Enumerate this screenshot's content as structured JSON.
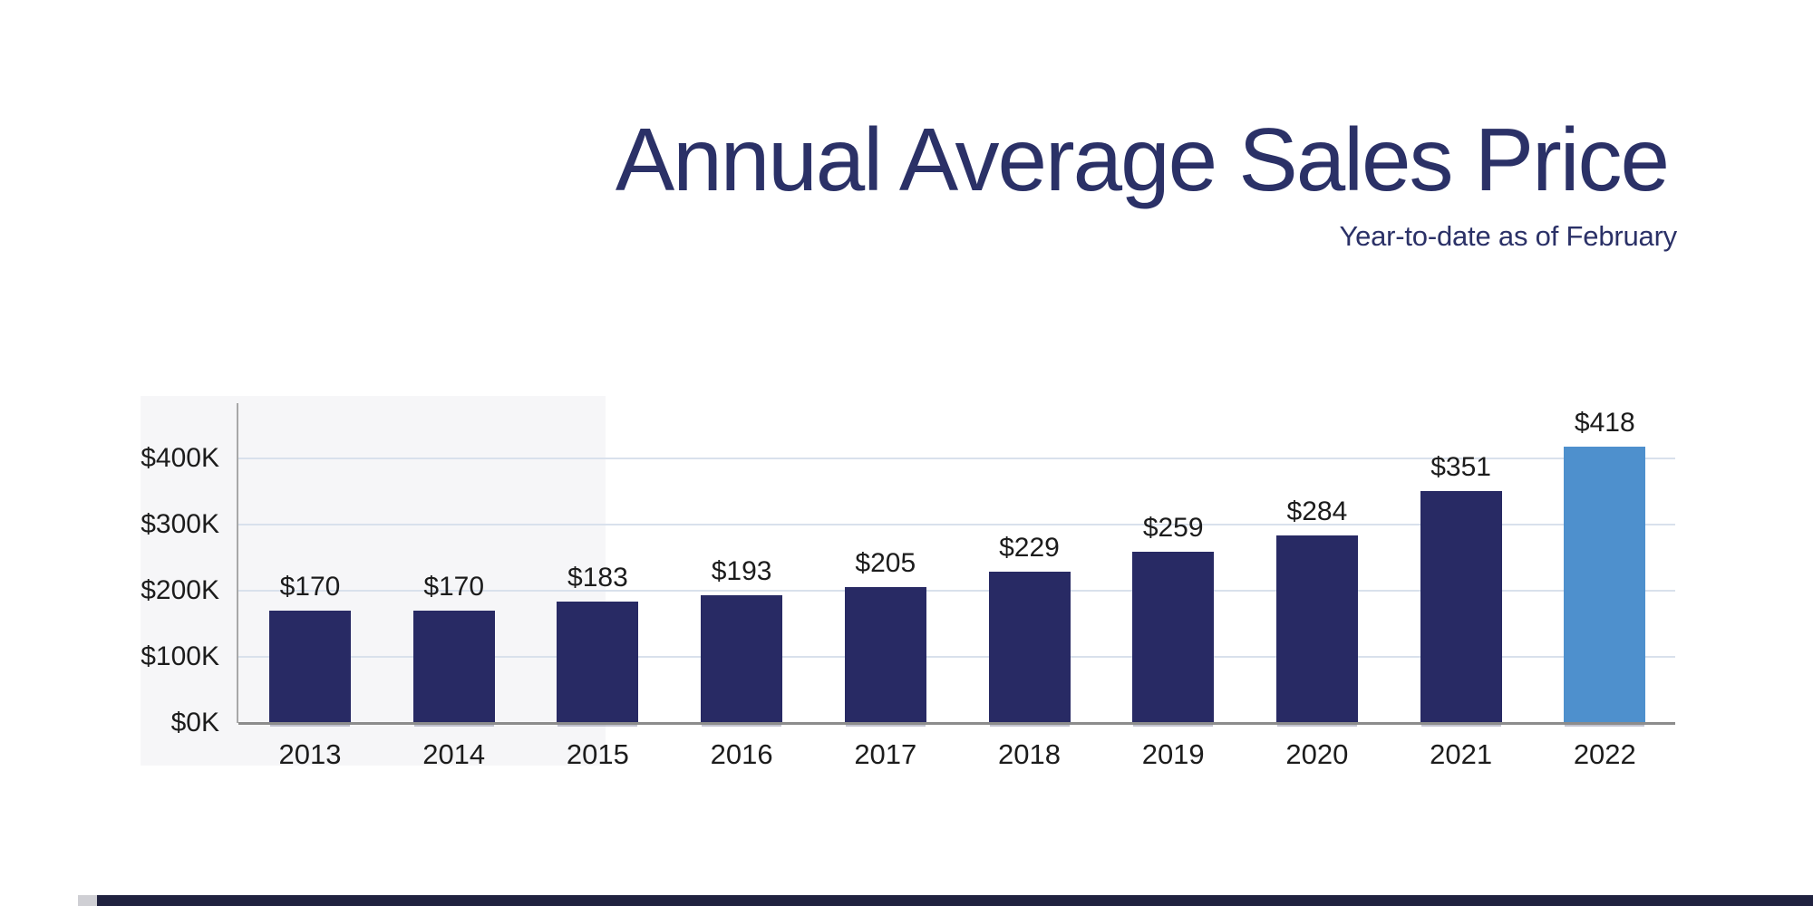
{
  "header": {
    "title": "Annual Average Sales Price",
    "subtitle": "Year-to-date as of February"
  },
  "colors": {
    "title_text": "#2b3167",
    "subtitle_text": "#2b3167",
    "bar_navy": "#282a64",
    "bar_highlight_blue": "#4e90cd",
    "gridline": "#d9e1ec",
    "x_axis_line": "#8c8c8c",
    "y_axis_line": "#a8a8a8",
    "label_text": "#1c1c1c",
    "footer_strip": "#20223f"
  },
  "chart_data": {
    "type": "bar",
    "title": "Annual Average Sales Price",
    "subtitle": "Year-to-date as of February",
    "categories": [
      "2013",
      "2014",
      "2015",
      "2016",
      "2017",
      "2018",
      "2019",
      "2020",
      "2021",
      "2022"
    ],
    "values": [
      170,
      170,
      183,
      193,
      205,
      229,
      259,
      284,
      351,
      418
    ],
    "value_labels": [
      "$170",
      "$170",
      "$183",
      "$193",
      "$205",
      "$229",
      "$259",
      "$284",
      "$351",
      "$418"
    ],
    "value_unit": "thousand dollars",
    "highlight_index": 9,
    "y_ticks": [
      {
        "label": "$400K",
        "value": 400
      },
      {
        "label": "$300K",
        "value": 300
      },
      {
        "label": "$200K",
        "value": 200
      },
      {
        "label": "$100K",
        "value": 100
      },
      {
        "label": "$0K",
        "value": 0
      }
    ],
    "ylim": [
      0,
      483
    ],
    "xlabel": "",
    "ylabel": "",
    "grid": "horizontal",
    "legend": "none"
  }
}
